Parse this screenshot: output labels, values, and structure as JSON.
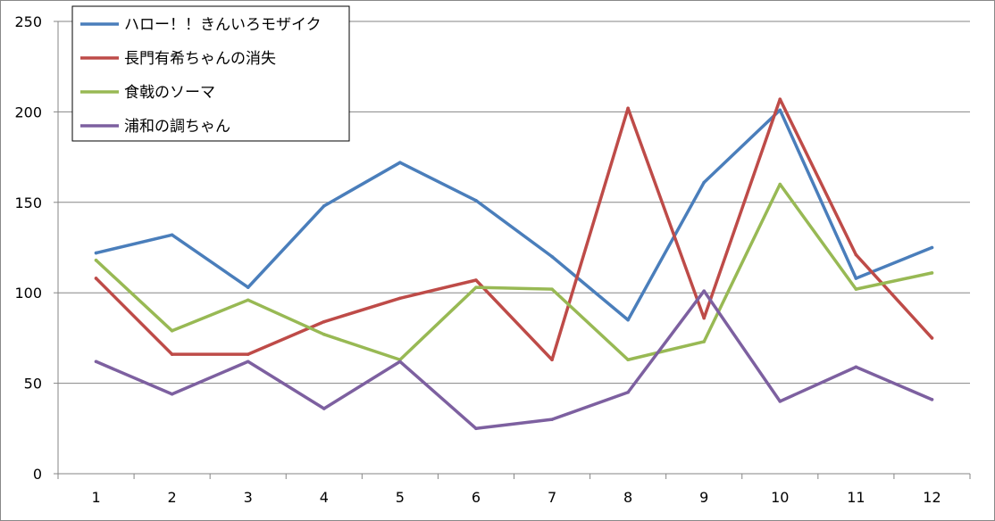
{
  "chart_data": {
    "type": "line",
    "title": "",
    "xlabel": "",
    "ylabel": "",
    "categories": [
      "1",
      "2",
      "3",
      "4",
      "5",
      "6",
      "7",
      "8",
      "9",
      "10",
      "11",
      "12"
    ],
    "ylim": [
      0,
      250
    ],
    "yticks": [
      0,
      50,
      100,
      150,
      200,
      250
    ],
    "grid": true,
    "legend_position": "top-left",
    "series": [
      {
        "name": "ハロー！！きんいろモザイク",
        "color": "#4a7ebb",
        "values": [
          122,
          132,
          103,
          148,
          172,
          151,
          120,
          85,
          161,
          201,
          108,
          125
        ]
      },
      {
        "name": "長門有希ちゃんの消失",
        "color": "#be4b48",
        "values": [
          108,
          66,
          66,
          84,
          97,
          107,
          63,
          202,
          86,
          207,
          121,
          75
        ]
      },
      {
        "name": "食戟のソーマ",
        "color": "#98b954",
        "values": [
          118,
          79,
          96,
          77,
          63,
          103,
          102,
          63,
          73,
          160,
          102,
          111
        ]
      },
      {
        "name": "浦和の調ちゃん",
        "color": "#7d60a0",
        "values": [
          62,
          44,
          62,
          36,
          62,
          25,
          30,
          45,
          101,
          40,
          59,
          41
        ]
      }
    ]
  }
}
